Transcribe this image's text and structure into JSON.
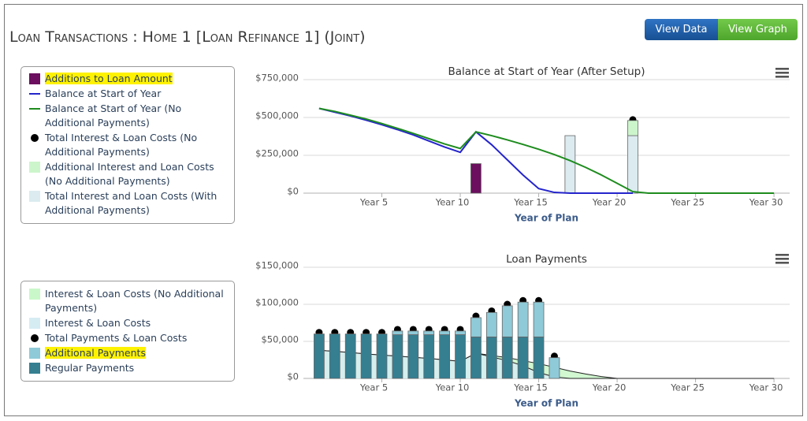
{
  "header": {
    "title": "Loan Transactions : Home 1 [Loan Refinance 1] (Joint)",
    "buttons": [
      "View Data",
      "View Graph"
    ]
  },
  "chart_data": [
    {
      "type": "combo",
      "title": "Balance at Start of Year (After Setup)",
      "x_label": "Year of Plan",
      "x": [
        1,
        2,
        3,
        4,
        5,
        6,
        7,
        8,
        9,
        10,
        11,
        12,
        13,
        14,
        15,
        16,
        17,
        18,
        19,
        20,
        21,
        22,
        23,
        24,
        25,
        26,
        27,
        28,
        29,
        30
      ],
      "xlim": [
        0,
        31
      ],
      "xticks": [
        {
          "value": 5,
          "label": "Year 5"
        },
        {
          "value": 10,
          "label": "Year 10"
        },
        {
          "value": 15,
          "label": "Year 15"
        },
        {
          "value": 20,
          "label": "Year 20"
        },
        {
          "value": 25,
          "label": "Year 25"
        },
        {
          "value": 30,
          "label": "Year 30"
        }
      ],
      "ylim": [
        0,
        750000
      ],
      "yticks": [
        {
          "value": 0,
          "label": "$0"
        },
        {
          "value": 250000,
          "label": "$250,000"
        },
        {
          "value": 500000,
          "label": "$500,000"
        },
        {
          "value": 750000,
          "label": "$750,000"
        }
      ],
      "grid": true,
      "series": [
        {
          "name": "Additions to Loan Amount",
          "kind": "column",
          "color": "#6b0f5e",
          "highlight": true,
          "values": [
            null,
            null,
            null,
            null,
            null,
            null,
            null,
            null,
            null,
            null,
            195000,
            null,
            null,
            null,
            null,
            null,
            null,
            null,
            null,
            null,
            null,
            null,
            null,
            null,
            null,
            null,
            null,
            null,
            null,
            null
          ]
        },
        {
          "name": "Balance at Start of Year",
          "kind": "line",
          "color": "#2424cc",
          "values": [
            560000,
            535000,
            510000,
            482000,
            452000,
            420000,
            385000,
            345000,
            305000,
            270000,
            405000,
            320000,
            220000,
            120000,
            30000,
            5000,
            0,
            0,
            0,
            0,
            0,
            null,
            null,
            null,
            null,
            null,
            null,
            null,
            null,
            null
          ]
        },
        {
          "name": "Balance at Start of Year (No Additional Payments)",
          "kind": "line",
          "color": "#1e8c1e",
          "values": [
            560000,
            540000,
            515000,
            490000,
            460000,
            428000,
            395000,
            360000,
            325000,
            295000,
            405000,
            380000,
            352000,
            322000,
            290000,
            255000,
            215000,
            170000,
            120000,
            65000,
            10000,
            0,
            0,
            0,
            0,
            0,
            0,
            0,
            0,
            0
          ]
        },
        {
          "name": "Total Interest & Loan Costs (No Additional Payments)",
          "kind": "scatter",
          "color": "#000000",
          "values": [
            null,
            null,
            null,
            null,
            null,
            null,
            null,
            null,
            null,
            null,
            null,
            null,
            null,
            null,
            null,
            null,
            null,
            null,
            null,
            null,
            485000,
            null,
            null,
            null,
            null,
            null,
            null,
            null,
            null,
            null
          ]
        },
        {
          "name": "Additional Interest and Loan Costs (No Additional Payments)",
          "kind": "column",
          "color": "#ccf5cc",
          "values": [
            null,
            null,
            null,
            null,
            null,
            null,
            null,
            null,
            null,
            null,
            null,
            null,
            null,
            null,
            null,
            null,
            null,
            null,
            null,
            null,
            100000,
            null,
            null,
            null,
            null,
            null,
            null,
            null,
            null,
            null
          ]
        },
        {
          "name": "Total Interest and Loan Costs (With Additional Payments)",
          "kind": "column",
          "color": "#dbebf0",
          "values": [
            null,
            null,
            null,
            null,
            null,
            null,
            null,
            null,
            null,
            null,
            null,
            null,
            null,
            null,
            null,
            null,
            380000,
            null,
            null,
            null,
            380000,
            null,
            null,
            null,
            null,
            null,
            null,
            null,
            null,
            null
          ]
        }
      ]
    },
    {
      "type": "combo",
      "title": "Loan Payments",
      "x_label": "Year of Plan",
      "x": [
        1,
        2,
        3,
        4,
        5,
        6,
        7,
        8,
        9,
        10,
        11,
        12,
        13,
        14,
        15,
        16,
        17,
        18,
        19,
        20,
        21,
        22,
        23,
        24,
        25,
        26,
        27,
        28,
        29,
        30
      ],
      "xlim": [
        0,
        31
      ],
      "xticks": [
        {
          "value": 5,
          "label": "Year 5"
        },
        {
          "value": 10,
          "label": "Year 10"
        },
        {
          "value": 15,
          "label": "Year 15"
        },
        {
          "value": 20,
          "label": "Year 20"
        },
        {
          "value": 25,
          "label": "Year 25"
        },
        {
          "value": 30,
          "label": "Year 30"
        }
      ],
      "ylim": [
        0,
        150000
      ],
      "yticks": [
        {
          "value": 0,
          "label": "$0"
        },
        {
          "value": 50000,
          "label": "$50,000"
        },
        {
          "value": 100000,
          "label": "$100,000"
        },
        {
          "value": 150000,
          "label": "$150,000"
        }
      ],
      "grid": true,
      "series": [
        {
          "name": "Interest & Loan Costs (No Additional Payments)",
          "kind": "area",
          "color": "#c9f7c9",
          "line_color": "#222222",
          "values": [
            38000,
            36500,
            35000,
            33000,
            31500,
            30000,
            28500,
            27000,
            25000,
            23000,
            34000,
            31000,
            28000,
            24000,
            20000,
            15000,
            10000,
            6000,
            2500,
            0,
            0,
            0,
            0,
            0,
            0,
            0,
            0,
            0,
            0,
            0
          ]
        },
        {
          "name": "Interest & Loan Costs",
          "kind": "area",
          "color": "#d6ecf3",
          "line_color": "#222222",
          "values": [
            38000,
            36500,
            35000,
            33000,
            31500,
            30000,
            28500,
            27000,
            25000,
            23000,
            34000,
            29000,
            24000,
            17000,
            8000,
            2000,
            0,
            0,
            0,
            0,
            0,
            0,
            0,
            0,
            0,
            0,
            0,
            0,
            0,
            0
          ]
        },
        {
          "name": "Total Payments & Loan Costs",
          "kind": "scatter",
          "color": "#000000",
          "values": [
            62000,
            62000,
            62000,
            62000,
            62000,
            66000,
            66000,
            66000,
            66000,
            66000,
            84000,
            91000,
            100000,
            105000,
            105000,
            30000,
            null,
            null,
            null,
            null,
            null,
            null,
            null,
            null,
            null,
            null,
            null,
            null,
            null,
            null
          ]
        },
        {
          "name": "Additional Payments",
          "kind": "column",
          "color": "#8fcad8",
          "highlight": true,
          "values": [
            null,
            null,
            null,
            null,
            null,
            5000,
            5000,
            5000,
            5000,
            5000,
            26000,
            33000,
            42000,
            47000,
            47000,
            28000,
            null,
            null,
            null,
            null,
            null,
            null,
            null,
            null,
            null,
            null,
            null,
            null,
            null,
            null
          ]
        },
        {
          "name": "Regular Payments",
          "kind": "column",
          "color": "#357f91",
          "values": [
            60000,
            60000,
            60000,
            60000,
            60000,
            59000,
            59000,
            59000,
            59000,
            59000,
            56000,
            56000,
            56000,
            56000,
            56000,
            null,
            null,
            null,
            null,
            null,
            null,
            null,
            null,
            null,
            null,
            null,
            null,
            null,
            null,
            null
          ]
        }
      ]
    }
  ]
}
